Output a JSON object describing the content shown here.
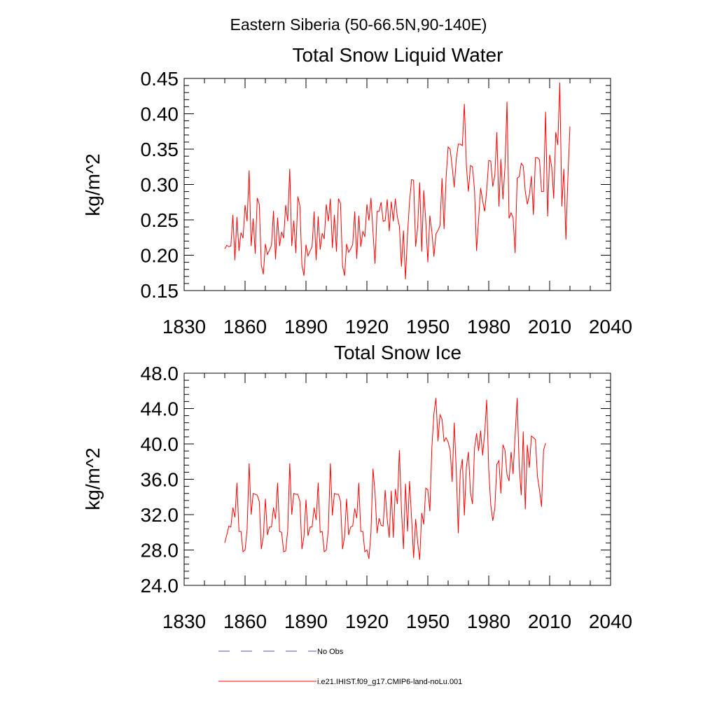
{
  "suptitle": "Eastern Siberia (50-66.5N,90-140E)",
  "chart_data": [
    {
      "type": "line",
      "title": "Total Snow Liquid Water",
      "ylabel": "kg/m^2",
      "xlim": [
        1830,
        2040
      ],
      "ylim": [
        0.15,
        0.45
      ],
      "xticks": [
        "1830",
        "1860",
        "1890",
        "1920",
        "1950",
        "1980",
        "2010",
        "2040"
      ],
      "yticks": [
        "0.15",
        "0.20",
        "0.25",
        "0.30",
        "0.35",
        "0.40",
        "0.45"
      ],
      "series": [
        {
          "name": "i.e21.IHIST.f09_g17.CMIP6-land-noLu.001",
          "color": "#ff0000",
          "x_start": 1850,
          "values": [
            0.209,
            0.214,
            0.212,
            0.213,
            0.257,
            0.193,
            0.254,
            0.206,
            0.232,
            0.224,
            0.271,
            0.248,
            0.32,
            0.213,
            0.252,
            0.202,
            0.281,
            0.272,
            0.186,
            0.173,
            0.216,
            0.201,
            0.207,
            0.214,
            0.263,
            0.194,
            0.253,
            0.213,
            0.233,
            0.224,
            0.271,
            0.248,
            0.322,
            0.213,
            0.249,
            0.203,
            0.283,
            0.27,
            0.186,
            0.171,
            0.215,
            0.199,
            0.206,
            0.212,
            0.262,
            0.193,
            0.255,
            0.208,
            0.231,
            0.223,
            0.272,
            0.248,
            0.28,
            0.21,
            0.257,
            0.205,
            0.28,
            0.273,
            0.185,
            0.171,
            0.216,
            0.204,
            0.209,
            0.215,
            0.262,
            0.195,
            0.256,
            0.212,
            0.234,
            0.226,
            0.272,
            0.249,
            0.281,
            0.233,
            0.188,
            0.262,
            0.262,
            0.275,
            0.248,
            0.249,
            0.279,
            0.234,
            0.276,
            0.248,
            0.28,
            0.254,
            0.241,
            0.184,
            0.235,
            0.166,
            0.229,
            0.276,
            0.307,
            0.306,
            0.212,
            0.24,
            0.303,
            0.205,
            0.292,
            0.248,
            0.19,
            0.256,
            0.233,
            0.198,
            0.23,
            0.235,
            0.242,
            0.309,
            0.237,
            0.31,
            0.353,
            0.35,
            0.325,
            0.296,
            0.335,
            0.357,
            0.357,
            0.355,
            0.414,
            0.326,
            0.29,
            0.327,
            0.325,
            0.292,
            0.206,
            0.25,
            0.295,
            0.277,
            0.262,
            0.292,
            0.334,
            0.333,
            0.297,
            0.313,
            0.374,
            0.269,
            0.336,
            0.279,
            0.325,
            0.417,
            0.252,
            0.26,
            0.253,
            0.203,
            0.309,
            0.311,
            0.33,
            0.326,
            0.29,
            0.272,
            0.285,
            0.312,
            0.257,
            0.338,
            0.338,
            0.335,
            0.29,
            0.29,
            0.403,
            0.255,
            0.342,
            0.325,
            0.28,
            0.374,
            0.356,
            0.444,
            0.269,
            0.322,
            0.222,
            0.311,
            0.382
          ]
        }
      ]
    },
    {
      "type": "line",
      "title": "Total Snow Ice",
      "ylabel": "kg/m^2",
      "xlim": [
        1830,
        2040
      ],
      "ylim": [
        24.0,
        48.0
      ],
      "xticks": [
        "1830",
        "1860",
        "1890",
        "1920",
        "1950",
        "1980",
        "2010",
        "2040"
      ],
      "yticks": [
        "24.0",
        "28.0",
        "32.0",
        "36.0",
        "40.0",
        "44.0",
        "48.0"
      ],
      "series": [
        {
          "name": "i.e21.IHIST.f09_g17.CMIP6-land-noLu.001",
          "color": "#ff0000",
          "x_start": 1850,
          "values": [
            28.8,
            29.7,
            30.7,
            30.6,
            32.8,
            31.7,
            35.6,
            30.1,
            30.1,
            27.8,
            28.0,
            30.3,
            37.8,
            32.0,
            34.4,
            34.3,
            34.2,
            33.5,
            28.1,
            29.5,
            33.8,
            29.7,
            30.6,
            30.6,
            32.8,
            31.5,
            35.6,
            30.1,
            30.0,
            27.8,
            27.9,
            30.2,
            37.8,
            32.0,
            34.4,
            34.3,
            34.3,
            33.5,
            28.1,
            29.5,
            33.7,
            29.6,
            30.6,
            30.6,
            32.8,
            31.4,
            35.6,
            30.0,
            30.1,
            27.8,
            28.0,
            30.3,
            37.8,
            31.9,
            34.4,
            34.3,
            34.3,
            33.5,
            28.1,
            29.5,
            33.8,
            29.7,
            30.6,
            30.7,
            32.7,
            31.6,
            35.6,
            30.1,
            30.1,
            27.8,
            28.0,
            27.0,
            30.0,
            37.2,
            34.5,
            29.9,
            31.6,
            30.8,
            30.7,
            34.8,
            31.5,
            29.4,
            34.7,
            29.4,
            34.9,
            33.2,
            39.3,
            32.6,
            28.1,
            35.5,
            30.1,
            35.8,
            31.6,
            27.1,
            31.5,
            28.9,
            26.9,
            32.2,
            30.9,
            35.0,
            34.8,
            32.4,
            39.6,
            43.4,
            45.2,
            40.3,
            43.3,
            42.8,
            40.3,
            40.7,
            40.2,
            39.3,
            35.7,
            42.4,
            37.1,
            29.9,
            36.9,
            38.3,
            31.9,
            37.4,
            39.1,
            34.5,
            33.2,
            39.5,
            41.2,
            39.2,
            41.5,
            38.7,
            41.2,
            45.0,
            37.1,
            33.1,
            31.3,
            32.7,
            37.7,
            38.1,
            34.4,
            39.9,
            39.3,
            36.5,
            35.8,
            39.1,
            36.6,
            41.0,
            45.2,
            37.5,
            34.2,
            41.4,
            32.6,
            39.9,
            37.3,
            40.9,
            40.7,
            40.5,
            36.3,
            34.8,
            32.9,
            39.3,
            40.1
          ]
        }
      ]
    }
  ],
  "legend": [
    {
      "label": "No Obs",
      "color": "#5a5ab4",
      "dash": "dashed"
    },
    {
      "label": "i.e21.IHIST.f09_g17.CMIP6-land-noLu.001",
      "color": "#ff0000",
      "dash": "solid"
    }
  ]
}
